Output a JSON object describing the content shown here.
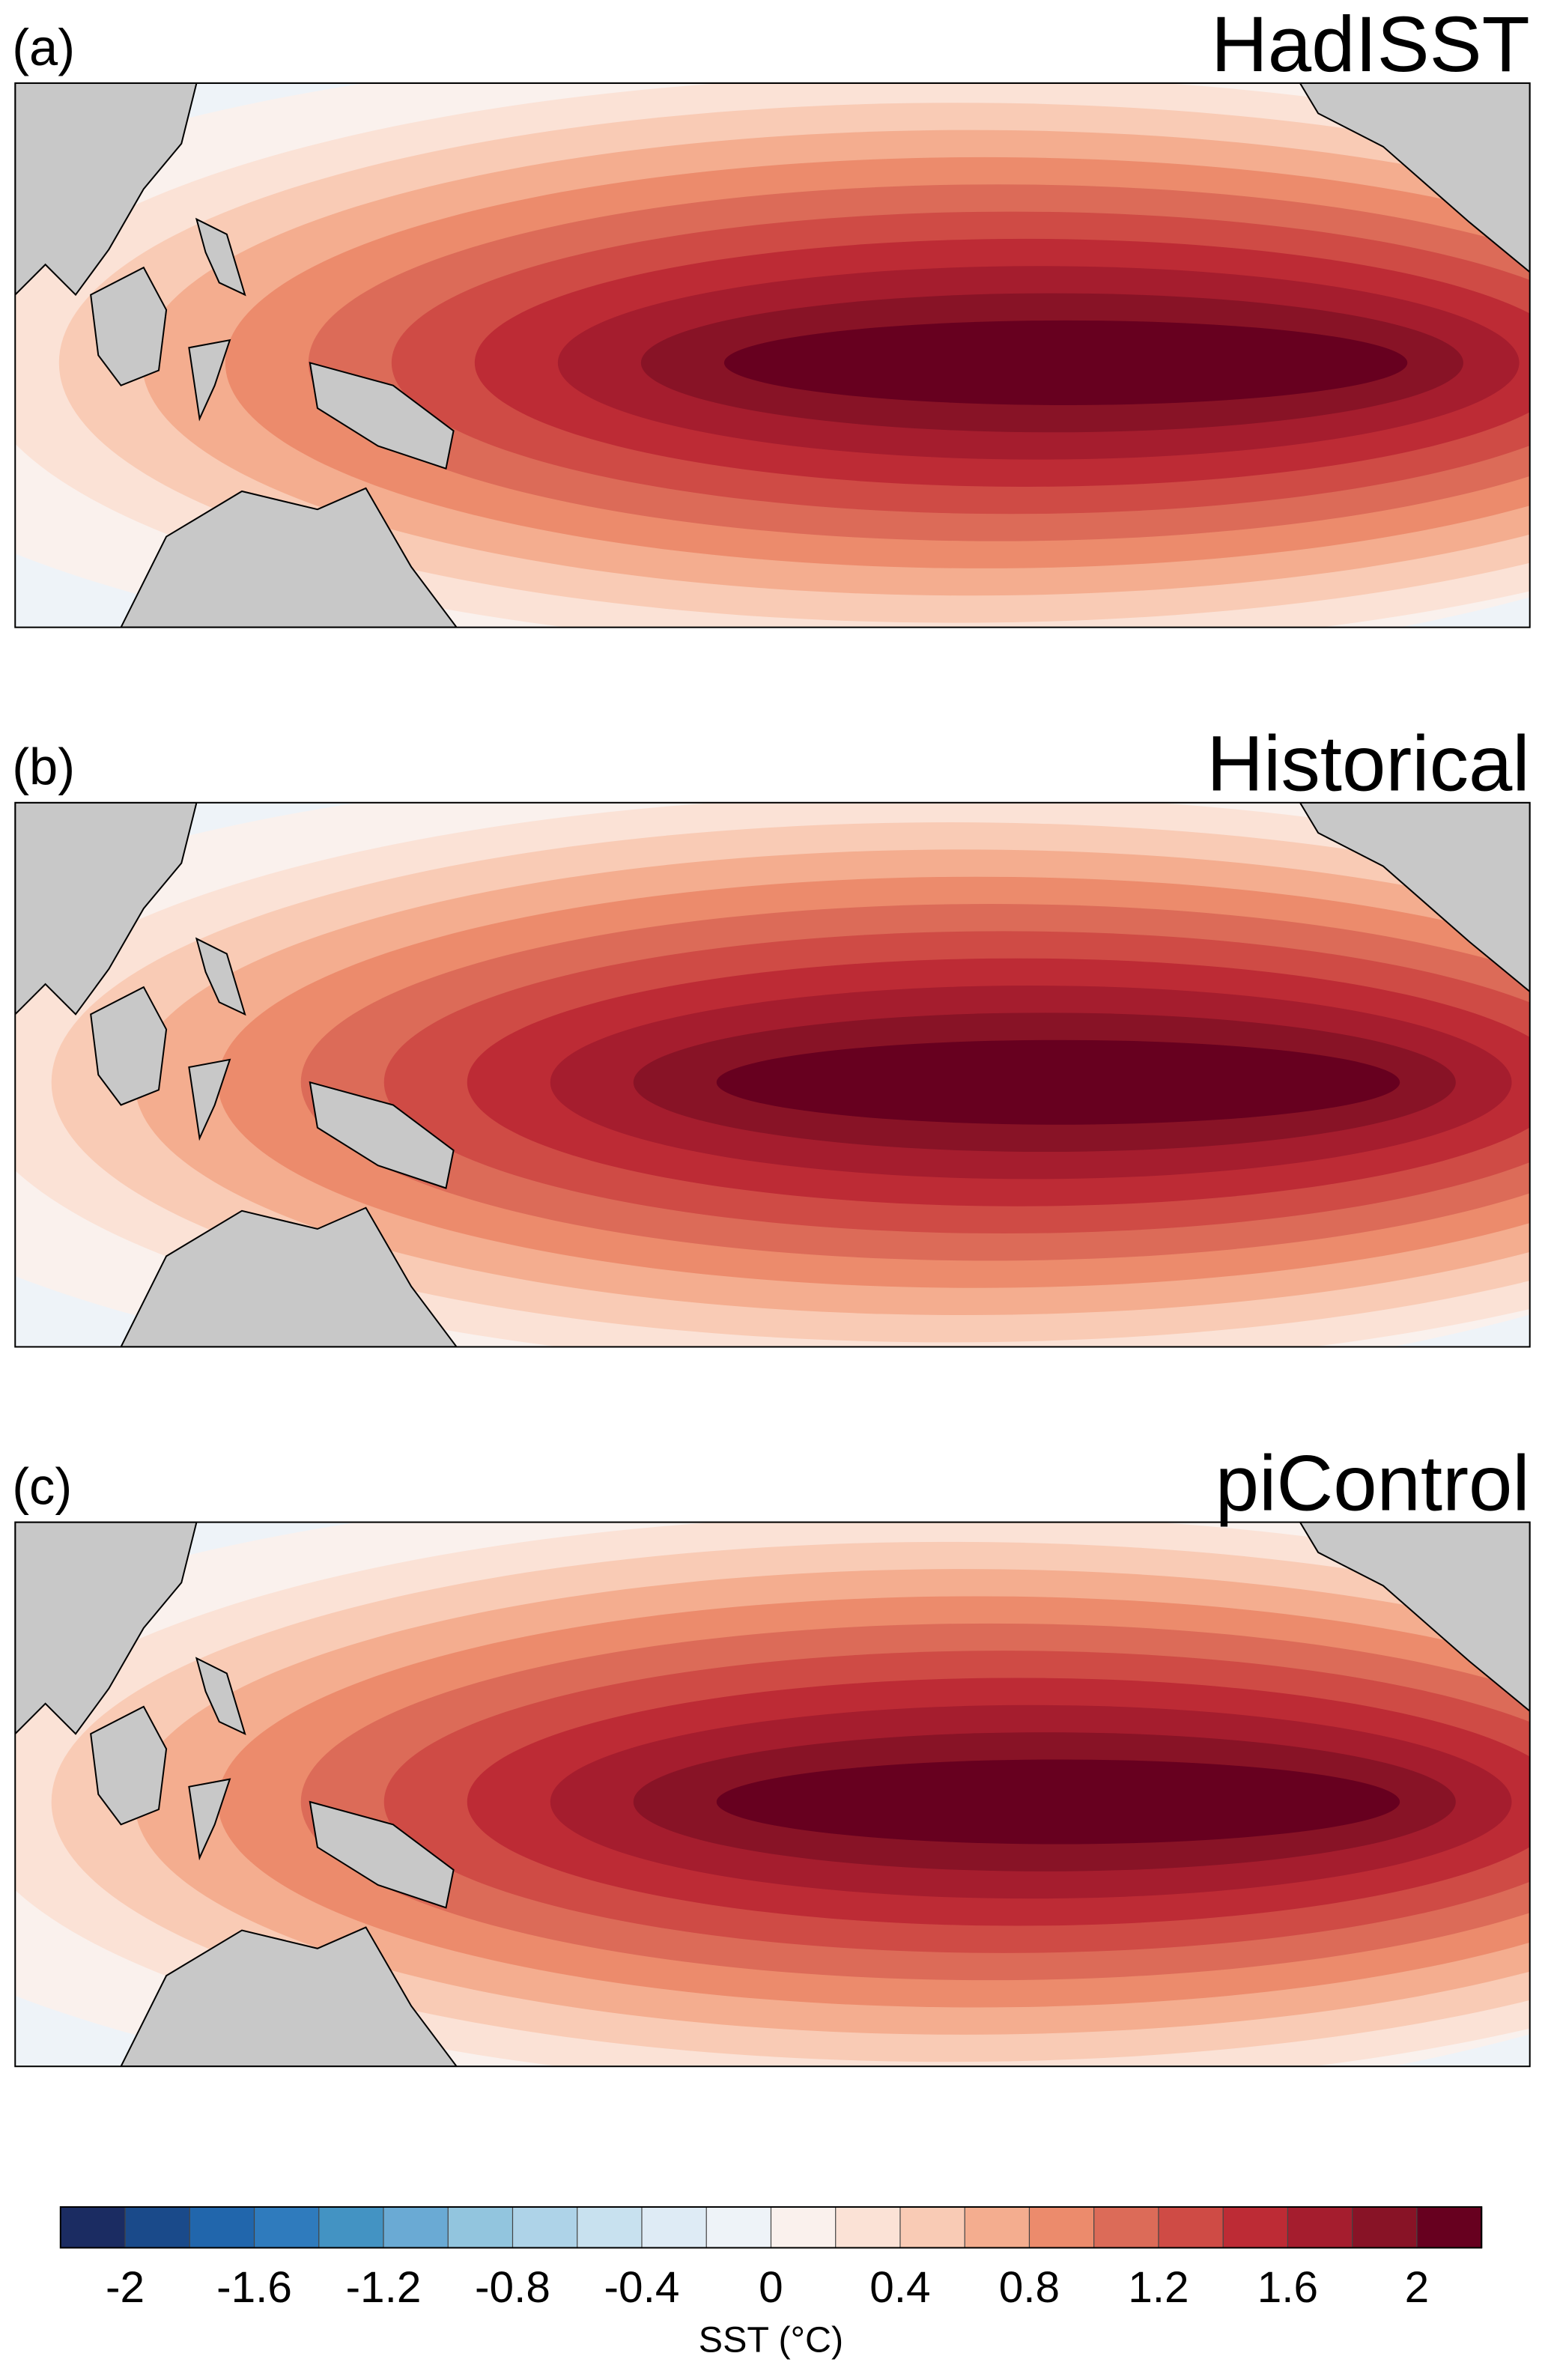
{
  "panels": [
    {
      "label": "(a)",
      "title": "HadISST"
    },
    {
      "label": "(b)",
      "title": "Historical"
    },
    {
      "label": "(c)",
      "title": "piControl"
    }
  ],
  "colorbar": {
    "label": "SST (°C)",
    "vlim": [
      -2.2,
      2.2
    ],
    "ticks": [
      -2,
      -1.6,
      -1.2,
      -0.8,
      -0.4,
      0,
      0.4,
      0.8,
      1.2,
      1.6,
      2
    ],
    "colors": [
      "#1b2c62",
      "#1a4a8a",
      "#2166ac",
      "#2f7bbd",
      "#4393c3",
      "#6aaad4",
      "#92c5de",
      "#aed3e8",
      "#c8e1ef",
      "#deebf5",
      "#eef3f8",
      "#faf1ed",
      "#fbe2d6",
      "#f9cbb5",
      "#f4ad8f",
      "#ec8b6c",
      "#dc6b58",
      "#cf4b45",
      "#bd2b35",
      "#a51d2e",
      "#881326",
      "#67001f"
    ]
  }
}
